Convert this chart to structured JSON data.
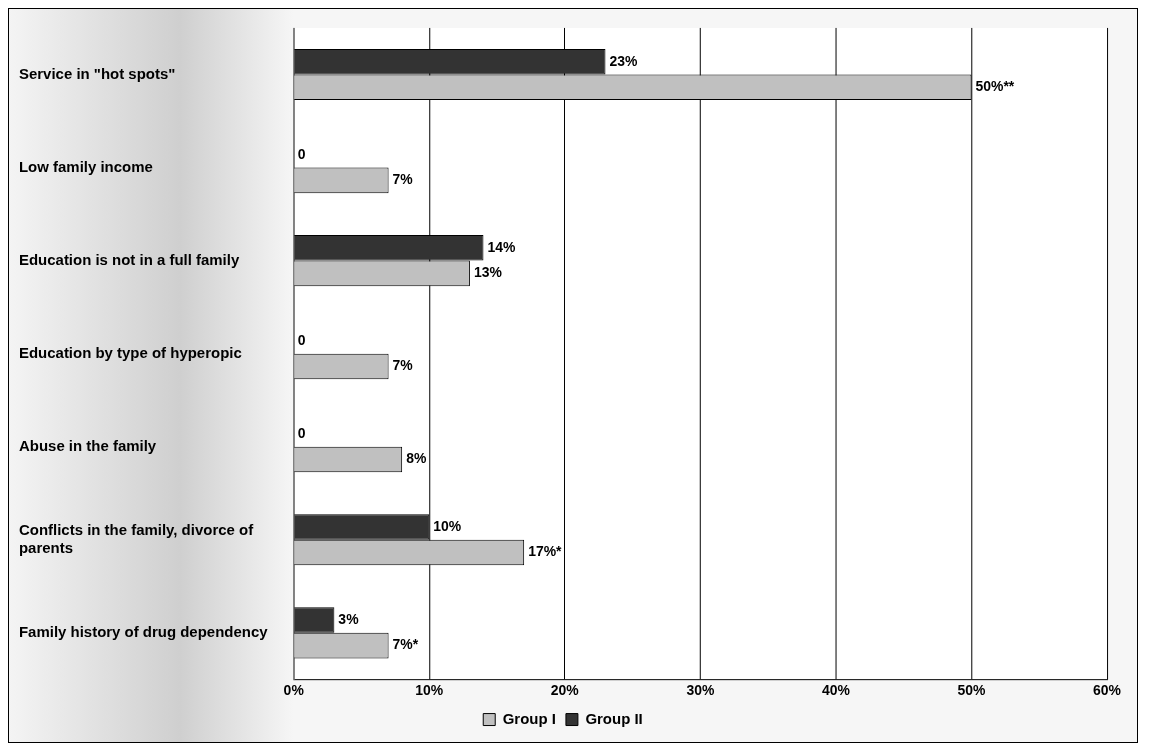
{
  "chart_data": {
    "type": "bar",
    "orientation": "horizontal",
    "categories": [
      "Service in \"hot spots\"",
      "Low family income",
      "Education is not in a full family",
      "Education by type of hyperopic",
      "Abuse in the family",
      "Conflicts in the family, divorce of parents",
      "Family history of drug dependency"
    ],
    "series": [
      {
        "name": "Group II",
        "color": "#333333",
        "values": [
          23,
          0,
          14,
          0,
          0,
          10,
          3
        ],
        "value_labels": [
          "23%",
          "0",
          "14%",
          "0",
          "0",
          "10%",
          "3%"
        ]
      },
      {
        "name": "Group I",
        "color": "#c0c0c0",
        "values": [
          50,
          7,
          13,
          7,
          8,
          17,
          7
        ],
        "value_labels": [
          "50%**",
          "7%",
          "13%",
          "7%",
          "8%",
          "17%*",
          "7%*"
        ]
      }
    ],
    "xlim": [
      0,
      60
    ],
    "xticks": [
      {
        "value": 0,
        "label": "0%"
      },
      {
        "value": 10,
        "label": "10%"
      },
      {
        "value": 20,
        "label": "20%"
      },
      {
        "value": 30,
        "label": "30%"
      },
      {
        "value": 40,
        "label": "40%"
      },
      {
        "value": 50,
        "label": "50%"
      },
      {
        "value": 60,
        "label": "60%"
      }
    ],
    "grid": "x",
    "legend": "bottom"
  }
}
